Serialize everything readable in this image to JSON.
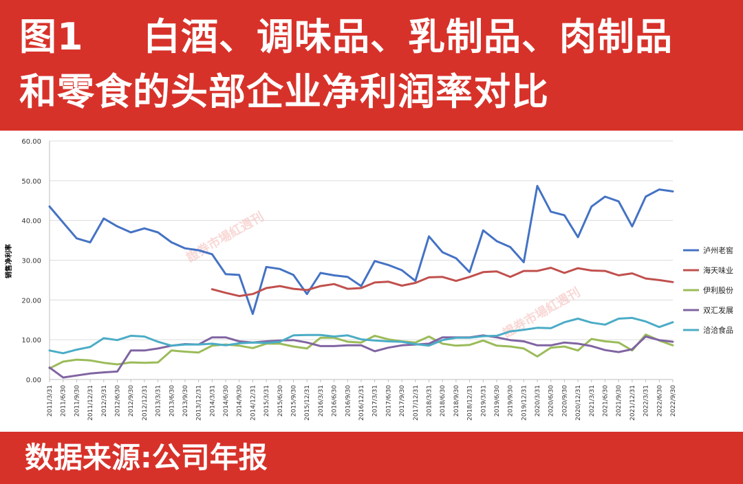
{
  "header": {
    "figure_number": "图1",
    "title_line1": "白酒、调味品、乳制品、肉制品",
    "title_line2": "和零食的头部企业净利润率对比"
  },
  "footer": {
    "source": "数据来源:公司年报"
  },
  "watermark": "證券市場紅週刊",
  "chart_data": {
    "type": "line",
    "title": "",
    "xlabel": "",
    "ylabel": "销售净利率",
    "ylim": [
      0,
      60
    ],
    "yticks": [
      "0.00",
      "10.00",
      "20.00",
      "30.00",
      "40.00",
      "50.00",
      "60.00"
    ],
    "grid": "horizontal",
    "legend_position": "right",
    "categories": [
      "2011/3/31",
      "2011/6/30",
      "2011/9/30",
      "2011/12/31",
      "2012/3/31",
      "2012/6/30",
      "2012/9/30",
      "2012/12/31",
      "2013/3/31",
      "2013/6/30",
      "2013/9/30",
      "2013/12/31",
      "2014/3/31",
      "2014/6/30",
      "2014/9/30",
      "2014/12/31",
      "2015/3/31",
      "2015/6/30",
      "2015/9/30",
      "2015/12/31",
      "2016/3/31",
      "2016/6/30",
      "2016/9/30",
      "2016/12/31",
      "2017/3/31",
      "2017/6/30",
      "2017/9/30",
      "2017/12/31",
      "2018/3/31",
      "2018/6/30",
      "2018/9/30",
      "2018/12/31",
      "2019/3/31",
      "2019/6/30",
      "2019/9/30",
      "2019/12/31",
      "2020/3/31",
      "2020/6/30",
      "2020/9/30",
      "2020/12/31",
      "2021/3/31",
      "2021/6/30",
      "2021/9/30",
      "2021/12/31",
      "2022/3/31",
      "2022/6/30",
      "2022/9/30"
    ],
    "series": [
      {
        "name": "泸州老窖",
        "color": "#4472c4",
        "values": [
          43.5,
          39.5,
          35.5,
          34.5,
          40.5,
          38.5,
          37.0,
          38.0,
          37.0,
          34.5,
          33.0,
          32.5,
          31.5,
          26.5,
          26.3,
          16.5,
          28.3,
          27.8,
          26.3,
          21.5,
          26.8,
          26.2,
          25.8,
          23.5,
          29.8,
          28.8,
          27.5,
          24.8,
          36.0,
          32.0,
          30.5,
          27.0,
          37.5,
          34.8,
          33.3,
          29.5,
          48.7,
          42.2,
          41.3,
          35.8,
          43.5,
          46.0,
          44.8,
          38.5,
          46.0,
          47.8,
          47.3
        ]
      },
      {
        "name": "海天味业",
        "color": "#c0504d",
        "values": [
          null,
          null,
          null,
          null,
          null,
          null,
          null,
          null,
          null,
          null,
          null,
          null,
          22.7,
          21.8,
          21.0,
          21.5,
          23.0,
          23.5,
          22.8,
          22.5,
          23.5,
          24.0,
          22.8,
          23.0,
          24.4,
          24.6,
          23.6,
          24.3,
          25.7,
          25.8,
          24.8,
          25.8,
          27.0,
          27.2,
          25.8,
          27.3,
          27.3,
          28.1,
          26.8,
          28.0,
          27.4,
          27.3,
          26.2,
          26.7,
          25.4,
          25.0,
          24.5
        ]
      },
      {
        "name": "伊利股份",
        "color": "#9bbb59",
        "values": [
          2.8,
          4.5,
          5.0,
          4.8,
          4.2,
          3.8,
          4.3,
          4.2,
          4.3,
          7.3,
          7.0,
          6.8,
          8.5,
          8.8,
          8.5,
          7.9,
          9.0,
          9.0,
          8.3,
          7.8,
          10.5,
          10.5,
          9.5,
          9.3,
          11.0,
          10.1,
          9.6,
          9.3,
          10.8,
          9.0,
          8.5,
          8.7,
          9.8,
          8.5,
          8.3,
          7.8,
          5.8,
          8.0,
          8.3,
          7.3,
          10.2,
          9.6,
          9.3,
          7.3,
          11.3,
          9.8,
          8.6
        ]
      },
      {
        "name": "双汇发展",
        "color": "#8064a2",
        "values": [
          3.0,
          0.5,
          1.0,
          1.5,
          1.8,
          2.0,
          7.3,
          7.3,
          7.8,
          8.5,
          8.9,
          8.8,
          10.6,
          10.6,
          9.6,
          9.3,
          9.6,
          9.8,
          9.9,
          9.3,
          8.4,
          8.4,
          8.6,
          8.6,
          7.1,
          8.0,
          8.6,
          8.8,
          9.0,
          10.6,
          10.6,
          10.6,
          11.1,
          10.6,
          9.9,
          9.6,
          8.6,
          8.6,
          9.3,
          9.0,
          8.4,
          7.4,
          6.9,
          7.6,
          10.8,
          9.9,
          9.5
        ]
      },
      {
        "name": "洽洽食品",
        "color": "#4bacc6",
        "values": [
          7.3,
          6.6,
          7.5,
          8.2,
          10.4,
          9.9,
          11.0,
          10.8,
          9.5,
          8.5,
          8.8,
          8.8,
          9.0,
          8.6,
          9.1,
          9.3,
          9.2,
          9.5,
          11.1,
          11.2,
          11.2,
          10.8,
          11.1,
          10.1,
          9.8,
          9.6,
          9.5,
          8.9,
          8.5,
          9.9,
          10.5,
          10.5,
          10.9,
          11.0,
          12.1,
          12.5,
          13.0,
          12.9,
          14.4,
          15.3,
          14.3,
          13.8,
          15.3,
          15.5,
          14.6,
          13.2,
          14.4
        ]
      }
    ]
  }
}
